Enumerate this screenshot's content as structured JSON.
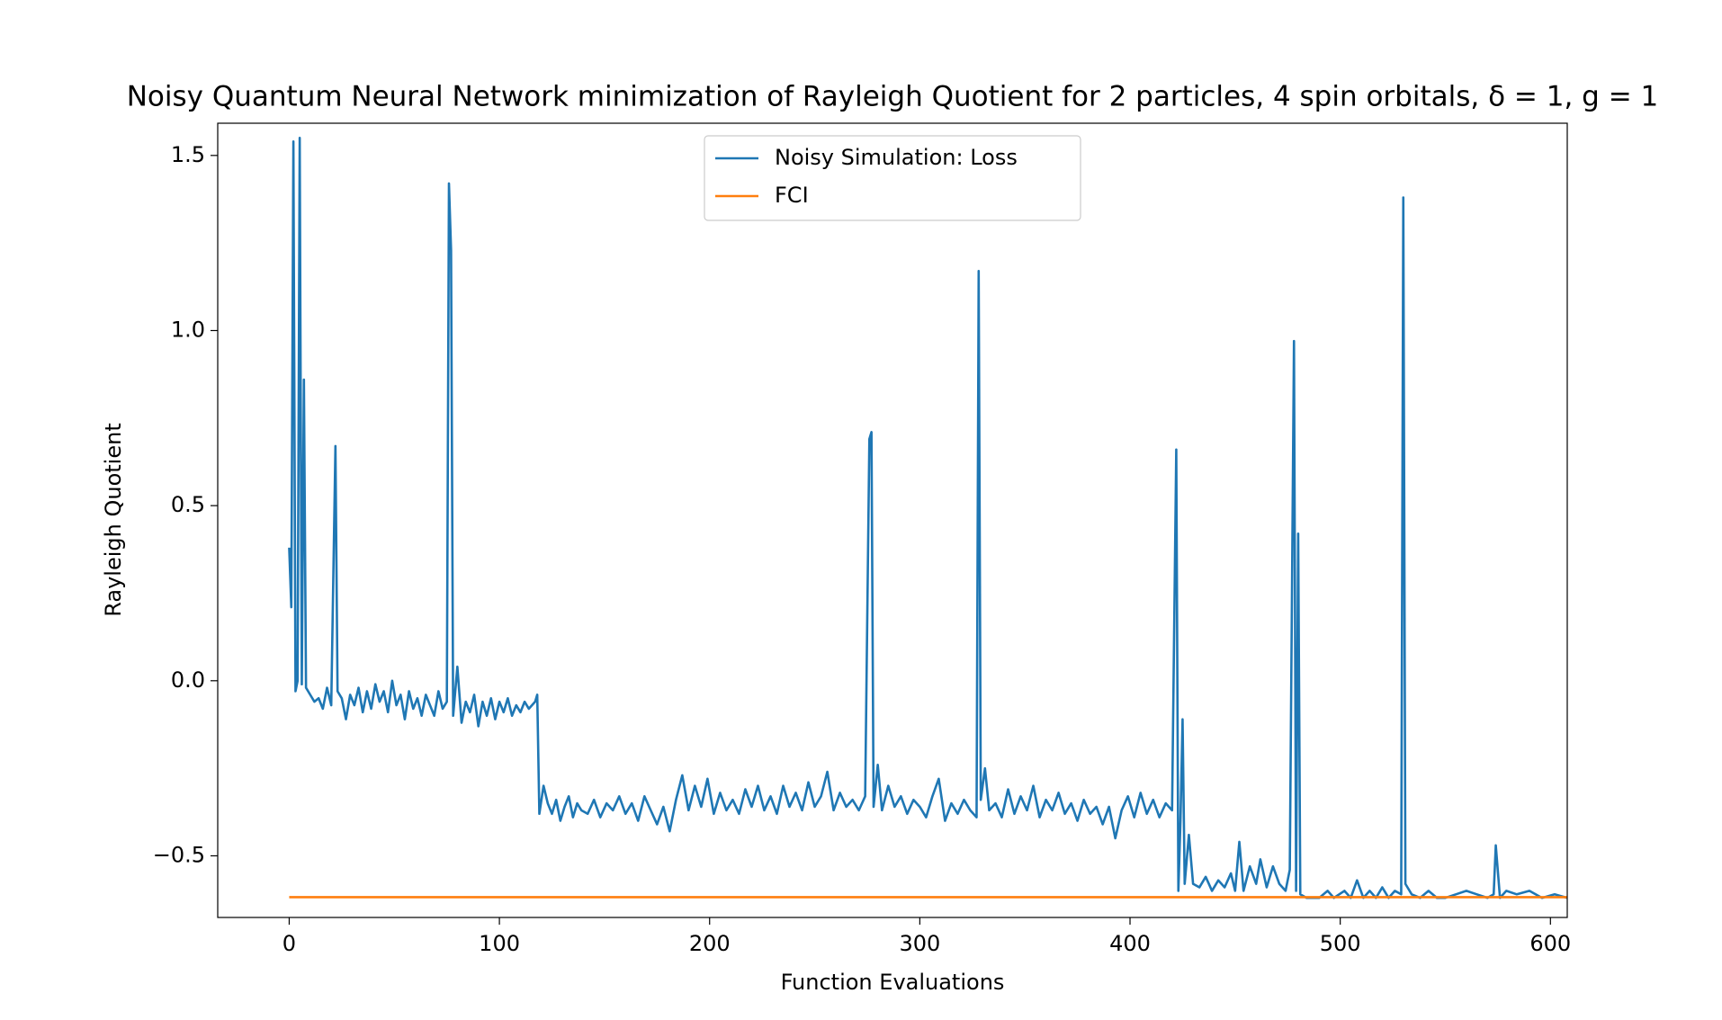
{
  "chart_data": {
    "type": "line",
    "title": "Noisy Quantum Neural Network minimization of Rayleigh Quotient for 2 particles, 4 spin orbitals, δ = 1, g = 1",
    "xlabel": "Function Evaluations",
    "ylabel": "Rayleigh Quotient",
    "xlim": [
      -34,
      608
    ],
    "ylim": [
      -0.676,
      1.592
    ],
    "xticks": [
      0,
      100,
      200,
      300,
      400,
      500,
      600
    ],
    "yticks": [
      {
        "value": -0.5,
        "label": "−0.5"
      },
      {
        "value": 0,
        "label": "0.0"
      },
      0.5,
      {
        "value": 1,
        "label": "1.0"
      },
      1.5
    ],
    "legend": "upper center",
    "series": [
      {
        "name": "Noisy Simulation: Loss",
        "color": "#1f77b4",
        "x": [
          0,
          1,
          2,
          3,
          4,
          5,
          6,
          7,
          8,
          10,
          12,
          14,
          16,
          18,
          20,
          22,
          23,
          25,
          27,
          29,
          31,
          33,
          35,
          37,
          39,
          41,
          43,
          45,
          47,
          49,
          51,
          53,
          55,
          57,
          59,
          61,
          63,
          65,
          67,
          69,
          71,
          73,
          75,
          76,
          77,
          78,
          80,
          82,
          84,
          86,
          88,
          90,
          92,
          94,
          96,
          98,
          100,
          102,
          104,
          106,
          108,
          110,
          112,
          114,
          117,
          118,
          119,
          121,
          123,
          125,
          127,
          129,
          131,
          133,
          135,
          137,
          139,
          142,
          145,
          148,
          151,
          154,
          157,
          160,
          163,
          166,
          169,
          172,
          175,
          178,
          181,
          184,
          187,
          190,
          193,
          196,
          199,
          202,
          205,
          208,
          211,
          214,
          217,
          220,
          223,
          226,
          229,
          232,
          235,
          238,
          241,
          244,
          247,
          250,
          253,
          256,
          259,
          262,
          265,
          268,
          271,
          274,
          276,
          277,
          278,
          280,
          282,
          285,
          288,
          291,
          294,
          297,
          300,
          303,
          306,
          309,
          312,
          315,
          318,
          321,
          324,
          327,
          328,
          329,
          331,
          333,
          336,
          339,
          342,
          345,
          348,
          351,
          354,
          357,
          360,
          363,
          366,
          369,
          372,
          375,
          378,
          381,
          384,
          387,
          390,
          393,
          396,
          399,
          402,
          405,
          408,
          411,
          414,
          417,
          420,
          422,
          423,
          424,
          425,
          426,
          428,
          430,
          433,
          436,
          439,
          442,
          445,
          448,
          450,
          452,
          454,
          457,
          460,
          462,
          465,
          468,
          471,
          474,
          476,
          478,
          479,
          480,
          481,
          484,
          490,
          494,
          497,
          502,
          505,
          508,
          511,
          514,
          517,
          520,
          523,
          526,
          529,
          530,
          531,
          534,
          538,
          542,
          546,
          550,
          555,
          560,
          565,
          570,
          573,
          574,
          576,
          579,
          584,
          590,
          596,
          602,
          608
        ],
        "values": [
          0.38,
          0.21,
          1.54,
          -0.03,
          0.0,
          1.55,
          -0.01,
          0.86,
          -0.02,
          -0.04,
          -0.06,
          -0.05,
          -0.08,
          -0.02,
          -0.07,
          0.67,
          -0.03,
          -0.05,
          -0.11,
          -0.04,
          -0.07,
          -0.02,
          -0.09,
          -0.03,
          -0.08,
          -0.01,
          -0.06,
          -0.03,
          -0.09,
          0.0,
          -0.07,
          -0.04,
          -0.11,
          -0.03,
          -0.08,
          -0.05,
          -0.1,
          -0.04,
          -0.07,
          -0.1,
          -0.03,
          -0.08,
          -0.06,
          1.42,
          1.23,
          -0.1,
          0.04,
          -0.12,
          -0.06,
          -0.09,
          -0.04,
          -0.13,
          -0.06,
          -0.1,
          -0.05,
          -0.11,
          -0.06,
          -0.09,
          -0.05,
          -0.1,
          -0.07,
          -0.09,
          -0.06,
          -0.08,
          -0.06,
          -0.04,
          -0.38,
          -0.3,
          -0.35,
          -0.38,
          -0.34,
          -0.4,
          -0.36,
          -0.33,
          -0.39,
          -0.35,
          -0.37,
          -0.38,
          -0.34,
          -0.39,
          -0.35,
          -0.37,
          -0.33,
          -0.38,
          -0.35,
          -0.4,
          -0.33,
          -0.37,
          -0.41,
          -0.36,
          -0.43,
          -0.34,
          -0.27,
          -0.37,
          -0.3,
          -0.36,
          -0.28,
          -0.38,
          -0.32,
          -0.37,
          -0.34,
          -0.38,
          -0.31,
          -0.36,
          -0.3,
          -0.37,
          -0.33,
          -0.38,
          -0.3,
          -0.36,
          -0.32,
          -0.37,
          -0.29,
          -0.36,
          -0.33,
          -0.26,
          -0.37,
          -0.32,
          -0.36,
          -0.34,
          -0.37,
          -0.33,
          0.69,
          0.71,
          -0.36,
          -0.24,
          -0.37,
          -0.3,
          -0.36,
          -0.33,
          -0.38,
          -0.34,
          -0.36,
          -0.39,
          -0.33,
          -0.28,
          -0.4,
          -0.35,
          -0.38,
          -0.34,
          -0.37,
          -0.39,
          1.17,
          -0.34,
          -0.25,
          -0.37,
          -0.35,
          -0.39,
          -0.31,
          -0.38,
          -0.33,
          -0.37,
          -0.3,
          -0.39,
          -0.34,
          -0.37,
          -0.32,
          -0.38,
          -0.35,
          -0.4,
          -0.34,
          -0.38,
          -0.36,
          -0.41,
          -0.36,
          -0.45,
          -0.37,
          -0.33,
          -0.39,
          -0.32,
          -0.38,
          -0.34,
          -0.39,
          -0.35,
          -0.37,
          0.66,
          -0.6,
          -0.4,
          -0.11,
          -0.58,
          -0.44,
          -0.58,
          -0.59,
          -0.56,
          -0.6,
          -0.57,
          -0.59,
          -0.55,
          -0.6,
          -0.46,
          -0.6,
          -0.53,
          -0.58,
          -0.51,
          -0.59,
          -0.53,
          -0.58,
          -0.6,
          -0.54,
          0.97,
          -0.6,
          0.42,
          -0.61,
          -0.62,
          -0.62,
          -0.6,
          -0.62,
          -0.6,
          -0.62,
          -0.57,
          -0.62,
          -0.6,
          -0.62,
          -0.59,
          -0.62,
          -0.6,
          -0.61,
          1.38,
          -0.58,
          -0.61,
          -0.62,
          -0.6,
          -0.62,
          -0.62,
          -0.61,
          -0.6,
          -0.61,
          -0.62,
          -0.61,
          -0.47,
          -0.62,
          -0.6,
          -0.61,
          -0.6,
          -0.62,
          -0.61,
          -0.62
        ]
      },
      {
        "name": "FCI",
        "color": "#ff7f0e",
        "x": [
          0,
          608
        ],
        "values": [
          -0.618,
          -0.618
        ]
      }
    ]
  }
}
